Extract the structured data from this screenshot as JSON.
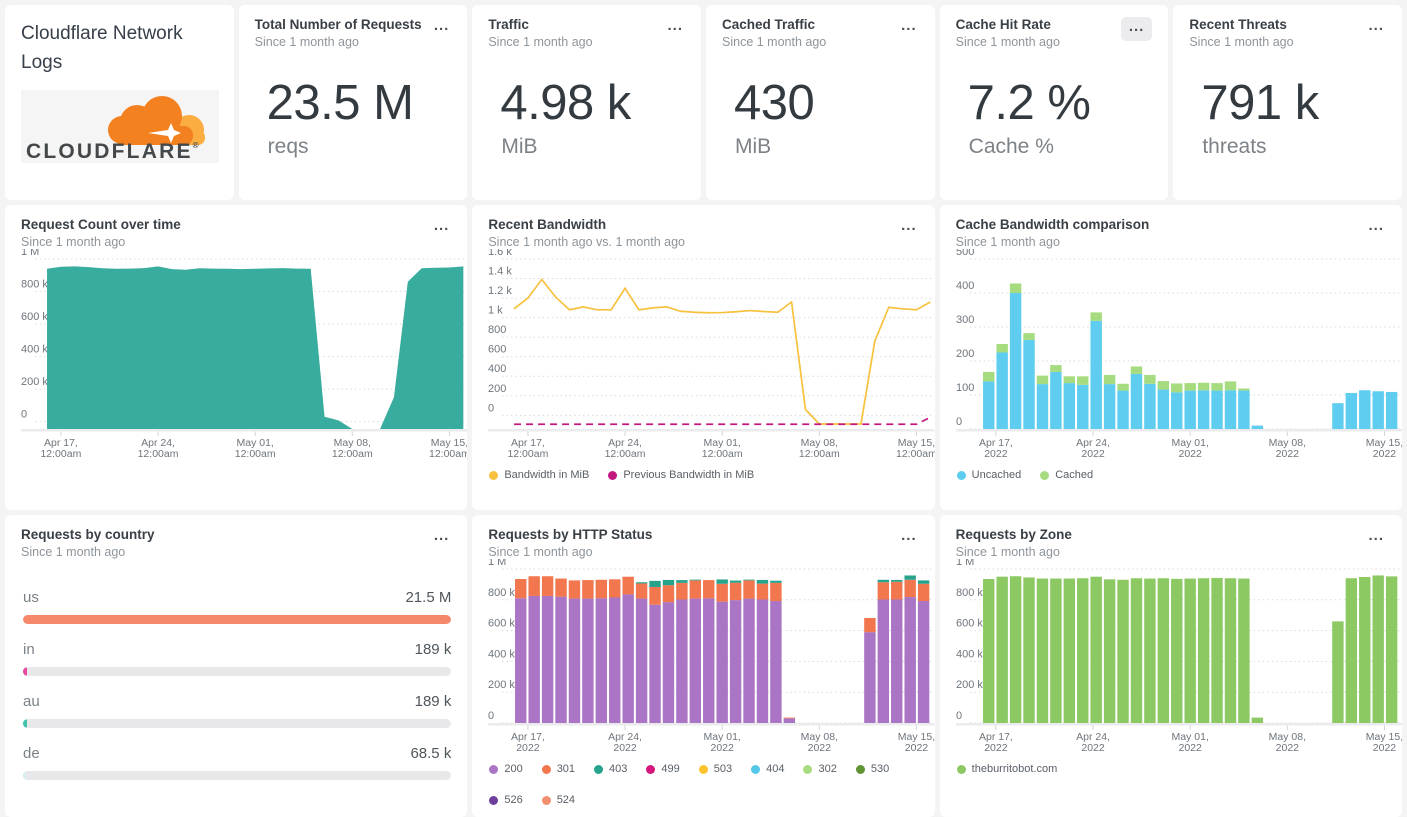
{
  "brand": {
    "title": "Cloudflare Network Logs",
    "logo_text": "CLOUDFLARE",
    "logo_reg": "®"
  },
  "menu_label": "...",
  "stats": [
    {
      "title": "Total Number of Requests",
      "subtitle": "Since 1 month ago",
      "value": "23.5 M",
      "unit": "reqs"
    },
    {
      "title": "Traffic",
      "subtitle": "Since 1 month ago",
      "value": "4.98 k",
      "unit": "MiB"
    },
    {
      "title": "Cached Traffic",
      "subtitle": "Since 1 month ago",
      "value": "430",
      "unit": "MiB"
    },
    {
      "title": "Cache Hit Rate",
      "subtitle": "Since 1 month ago",
      "value": "7.2 %",
      "unit": "Cache %"
    },
    {
      "title": "Recent Threats",
      "subtitle": "Since 1 month ago",
      "value": "791 k",
      "unit": "threats"
    }
  ],
  "charts": {
    "request_count": {
      "title": "Request Count over time",
      "subtitle": "Since 1 month ago",
      "chart_data": {
        "type": "area",
        "color": "#38ac9e",
        "days": 31,
        "ymax": 1000000,
        "ymin": -45000,
        "yticks": [
          {
            "v": 1000000,
            "label": "1 M"
          },
          {
            "v": 800000,
            "label": "800 k"
          },
          {
            "v": 600000,
            "label": "600 k"
          },
          {
            "v": 400000,
            "label": "400 k"
          },
          {
            "v": 200000,
            "label": "200 k"
          },
          {
            "v": 0,
            "label": "0"
          }
        ],
        "xticks": [
          {
            "day": 1,
            "l1": "Apr 17,",
            "l2": "12:00am"
          },
          {
            "day": 8,
            "l1": "Apr 24,",
            "l2": "12:00am"
          },
          {
            "day": 15,
            "l1": "May 01,",
            "l2": "12:00am"
          },
          {
            "day": 22,
            "l1": "May 08,",
            "l2": "12:00am"
          },
          {
            "day": 29,
            "l1": "May 15,",
            "l2": "12:00am"
          }
        ],
        "values": [
          940000,
          952000,
          955000,
          950000,
          943000,
          940000,
          941000,
          944000,
          955000,
          938000,
          934000,
          943000,
          941000,
          940000,
          938000,
          940000,
          942000,
          944000,
          941000,
          940000,
          30000,
          8000,
          0,
          0,
          0,
          150000,
          860000,
          943000,
          946000,
          948000,
          955000
        ]
      }
    },
    "bandwidth": {
      "title": "Recent Bandwidth",
      "subtitle": "Since 1 month ago vs. 1 month ago",
      "chart_data": {
        "type": "line",
        "days": 31,
        "ymax": 1600,
        "ymin": -140,
        "yticks": [
          {
            "v": 1600,
            "label": "1.6 k"
          },
          {
            "v": 1400,
            "label": "1.4 k"
          },
          {
            "v": 1200,
            "label": "1.2 k"
          },
          {
            "v": 1000,
            "label": "1 k"
          },
          {
            "v": 800,
            "label": "800"
          },
          {
            "v": 600,
            "label": "600"
          },
          {
            "v": 400,
            "label": "400"
          },
          {
            "v": 200,
            "label": "200"
          },
          {
            "v": 0,
            "label": "0"
          }
        ],
        "xticks": [
          {
            "day": 1,
            "l1": "Apr 17,",
            "l2": "12:00am"
          },
          {
            "day": 8,
            "l1": "Apr 24,",
            "l2": "12:00am"
          },
          {
            "day": 15,
            "l1": "May 01,",
            "l2": "12:00am"
          },
          {
            "day": 22,
            "l1": "May 08,",
            "l2": "12:00am"
          },
          {
            "day": 29,
            "l1": "May 15,",
            "l2": "12:00am"
          }
        ],
        "series": [
          {
            "name": "Bandwidth in MiB",
            "color": "#f7c13e",
            "zero_at_bottom": true,
            "values": [
              1090,
              1200,
              1390,
              1210,
              1080,
              1110,
              1080,
              1080,
              1300,
              1080,
              1100,
              1110,
              1065,
              1055,
              1050,
              1052,
              1060,
              1072,
              1062,
              1055,
              1160,
              60,
              0,
              0,
              0,
              0,
              760,
              1105,
              1090,
              1080,
              1160
            ]
          },
          {
            "name": "Previous Bandwidth in MiB",
            "color": "#c2187e",
            "dashed": true,
            "display_offset": -91,
            "zero_at_bottom": false,
            "values": [
              0,
              0,
              0,
              0,
              0,
              0,
              0,
              0,
              0,
              0,
              0,
              0,
              0,
              0,
              0,
              0,
              0,
              0,
              0,
              0,
              0,
              0,
              0,
              0,
              0,
              0,
              0,
              0,
              0,
              0,
              70
            ]
          }
        ]
      }
    },
    "cache": {
      "title": "Cache Bandwidth comparison",
      "subtitle": "Since 1 month ago",
      "chart_data": {
        "type": "stacked-bar",
        "days": 31,
        "ymax": 500,
        "ymin": 0,
        "yticks": [
          {
            "v": 500,
            "label": "500"
          },
          {
            "v": 400,
            "label": "400"
          },
          {
            "v": 300,
            "label": "300"
          },
          {
            "v": 200,
            "label": "200"
          },
          {
            "v": 100,
            "label": "100"
          },
          {
            "v": 0,
            "label": "0"
          }
        ],
        "xticks": [
          {
            "day": 1,
            "l1": "Apr 17,",
            "l2": "2022"
          },
          {
            "day": 8,
            "l1": "Apr 24,",
            "l2": "2022"
          },
          {
            "day": 15,
            "l1": "May 01,",
            "l2": "2022"
          },
          {
            "day": 22,
            "l1": "May 08,",
            "l2": "2022"
          },
          {
            "day": 29,
            "l1": "May 15,",
            "l2": "2022"
          }
        ],
        "series": [
          {
            "name": "Uncached",
            "color": "#5ecdf0",
            "values": [
              140,
              225,
              400,
              262,
              132,
              168,
              135,
              130,
              318,
              132,
              113,
              162,
              133,
              116,
              108,
              113,
              114,
              113,
              114,
              113,
              10,
              0,
              0,
              0,
              0,
              0,
              76,
              106,
              114,
              111,
              109
            ]
          },
          {
            "name": "Cached",
            "color": "#a7db80",
            "values": [
              28,
              25,
              28,
              20,
              25,
              20,
              20,
              25,
              25,
              27,
              20,
              22,
              26,
              25,
              26,
              22,
              22,
              22,
              26,
              6,
              0,
              0,
              0,
              0,
              0,
              0,
              0,
              0,
              0,
              0,
              0
            ]
          }
        ]
      }
    },
    "country": {
      "title": "Requests by country",
      "subtitle": "Since 1 month ago",
      "chart_data": {
        "type": "hbar",
        "max": 21500000,
        "rows": [
          {
            "label": "us",
            "value_label": "21.5 M",
            "value": 21500000,
            "color": "#f5876a"
          },
          {
            "label": "in",
            "value_label": "189 k",
            "value": 189000,
            "color": "#e8489e"
          },
          {
            "label": "au",
            "value_label": "189 k",
            "value": 189000,
            "color": "#3fc1ad"
          },
          {
            "label": "de",
            "value_label": "68.5 k",
            "value": 68500,
            "color": "#cfeef7"
          }
        ]
      }
    },
    "http": {
      "title": "Requests by HTTP Status",
      "subtitle": "Since 1 month ago",
      "chart_data": {
        "type": "stacked-bar",
        "days": 31,
        "ymax": 1000000,
        "ymin": 0,
        "yticks": [
          {
            "v": 1000000,
            "label": "1 M"
          },
          {
            "v": 800000,
            "label": "800 k"
          },
          {
            "v": 600000,
            "label": "600 k"
          },
          {
            "v": 400000,
            "label": "400 k"
          },
          {
            "v": 200000,
            "label": "200 k"
          },
          {
            "v": 0,
            "label": "0"
          }
        ],
        "xticks": [
          {
            "day": 1,
            "l1": "Apr 17,",
            "l2": "2022"
          },
          {
            "day": 8,
            "l1": "Apr 24,",
            "l2": "2022"
          },
          {
            "day": 15,
            "l1": "May 01,",
            "l2": "2022"
          },
          {
            "day": 22,
            "l1": "May 08,",
            "l2": "2022"
          },
          {
            "day": 29,
            "l1": "May 15,",
            "l2": "2022"
          }
        ],
        "series": [
          {
            "name": "200",
            "color": "#ab75c5",
            "values": [
              810000,
              825000,
              825000,
              820000,
              808000,
              808000,
              810000,
              815000,
              835000,
              808000,
              768000,
              785000,
              802000,
              808000,
              810000,
              788000,
              798000,
              808000,
              802000,
              792000,
              30000,
              0,
              0,
              0,
              0,
              0,
              590000,
              802000,
              802000,
              818000,
              792000
            ]
          },
          {
            "name": "301",
            "color": "#f2764e",
            "values": [
              125000,
              128000,
              128000,
              118000,
              118000,
              120000,
              120000,
              118000,
              115000,
              98000,
              115000,
              110000,
              108000,
              118000,
              118000,
              116000,
              113000,
              118000,
              103000,
              118000,
              5000,
              0,
              0,
              0,
              0,
              0,
              92000,
              112000,
              115000,
              112000,
              112000
            ]
          },
          {
            "name": "403",
            "color": "#27a38c",
            "values": [
              0,
              0,
              0,
              0,
              0,
              0,
              0,
              0,
              0,
              8000,
              40000,
              34000,
              18000,
              5000,
              0,
              28000,
              14000,
              5000,
              24000,
              14000,
              0,
              0,
              0,
              0,
              0,
              0,
              0,
              16000,
              12000,
              28000,
              22000
            ]
          }
        ],
        "legend_extra": [
          {
            "name": "499",
            "color": "#d4167d"
          },
          {
            "name": "503",
            "color": "#fbc32d"
          },
          {
            "name": "404",
            "color": "#55c8e9"
          },
          {
            "name": "302",
            "color": "#a9db80"
          },
          {
            "name": "530",
            "color": "#5f9334"
          },
          {
            "name": "526",
            "color": "#6f3f9c"
          },
          {
            "name": "524",
            "color": "#f28f6e"
          }
        ]
      }
    },
    "zone": {
      "title": "Requests by Zone",
      "subtitle": "Since 1 month ago",
      "chart_data": {
        "type": "stacked-bar",
        "days": 31,
        "ymax": 1000000,
        "ymin": 0,
        "yticks": [
          {
            "v": 1000000,
            "label": "1 M"
          },
          {
            "v": 800000,
            "label": "800 k"
          },
          {
            "v": 600000,
            "label": "600 k"
          },
          {
            "v": 400000,
            "label": "400 k"
          },
          {
            "v": 200000,
            "label": "200 k"
          },
          {
            "v": 0,
            "label": "0"
          }
        ],
        "xticks": [
          {
            "day": 1,
            "l1": "Apr 17,",
            "l2": "2022"
          },
          {
            "day": 8,
            "l1": "Apr 24,",
            "l2": "2022"
          },
          {
            "day": 15,
            "l1": "May 01,",
            "l2": "2022"
          },
          {
            "day": 22,
            "l1": "May 08,",
            "l2": "2022"
          },
          {
            "day": 29,
            "l1": "May 15,",
            "l2": "2022"
          }
        ],
        "series": [
          {
            "name": "theburritobot.com",
            "color": "#8cc963",
            "values": [
              935000,
              950000,
              953000,
              945000,
              938000,
              938000,
              938000,
              940000,
              950000,
              933000,
              930000,
              940000,
              938000,
              940000,
              936000,
              938000,
              940000,
              942000,
              940000,
              938000,
              35000,
              0,
              0,
              0,
              0,
              0,
              660000,
              940000,
              948000,
              958000,
              952000
            ]
          }
        ]
      }
    }
  }
}
